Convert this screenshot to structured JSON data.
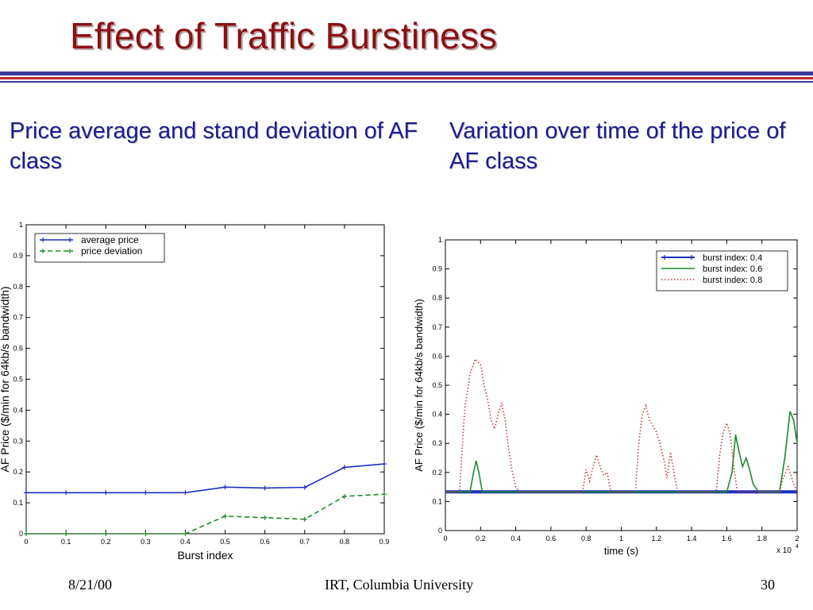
{
  "slide": {
    "title": "Effect of Traffic Burstiness",
    "left_heading": "Price average and stand deviation of AF class",
    "right_heading": "Variation over time of the price of AF class",
    "footer": {
      "date": "8/21/00",
      "organization": "IRT, Columbia University",
      "page": "30"
    },
    "colors": {
      "title": "#8b0f13",
      "heading": "#1b1b8f",
      "rule_blue": "#3c3aa0",
      "rule_red": "#c0262c"
    }
  },
  "chart_data": [
    {
      "type": "line",
      "xlabel": "Burst index",
      "ylabel": "AF Price ($/min for 64kb/s bandwidth)",
      "xlim": [
        0,
        0.9
      ],
      "ylim": [
        0,
        1
      ],
      "xticks": [
        "0",
        "0.1",
        "0.2",
        "0.3",
        "0.4",
        "0.5",
        "0.6",
        "0.7",
        "0.8",
        "0.9"
      ],
      "yticks": [
        "0",
        "0.1",
        "0.2",
        "0.3",
        "0.4",
        "0.5",
        "0.6",
        "0.7",
        "0.8",
        "0.9",
        "1"
      ],
      "legend_position": "top-left",
      "x": [
        0,
        0.1,
        0.2,
        0.3,
        0.4,
        0.5,
        0.6,
        0.7,
        0.8,
        0.9
      ],
      "series": [
        {
          "name": "average price",
          "color": "#1b2fbf",
          "style": "solid",
          "values": [
            0.133,
            0.133,
            0.133,
            0.133,
            0.133,
            0.151,
            0.148,
            0.15,
            0.215,
            0.226
          ]
        },
        {
          "name": "price deviation",
          "color": "#1d8a2a",
          "style": "dashed",
          "values": [
            0.0,
            0.0,
            0.0,
            0.0,
            0.0,
            0.057,
            0.052,
            0.047,
            0.121,
            0.128
          ]
        }
      ]
    },
    {
      "type": "line",
      "xlabel": "time (s)",
      "ylabel": "AF Price ($/min for 64kb/s bandwidth)",
      "x_multiplier": "x 10",
      "x_multiplier_exponent": "4",
      "xlim": [
        0,
        2
      ],
      "ylim": [
        0,
        1
      ],
      "xticks": [
        "0",
        "0.2",
        "0.4",
        "0.6",
        "0.8",
        "1",
        "1.2",
        "1.4",
        "1.6",
        "1.8",
        "2"
      ],
      "yticks": [
        "0",
        "0.1",
        "0.2",
        "0.3",
        "0.4",
        "0.5",
        "0.6",
        "0.7",
        "0.8",
        "0.9",
        "1"
      ],
      "legend_position": "top-right",
      "series": [
        {
          "name": "burst index: 0.4",
          "color": "#1b2fbf",
          "style": "solid-marker",
          "x": [
            0,
            2
          ],
          "values": [
            0.133,
            0.133
          ]
        },
        {
          "name": "burst index: 0.6",
          "color": "#1d8a2a",
          "style": "solid",
          "x": [
            0,
            0.14,
            0.16,
            0.175,
            0.19,
            0.21,
            0.23,
            1.6,
            1.63,
            1.65,
            1.67,
            1.69,
            1.71,
            1.73,
            1.75,
            1.78,
            1.9,
            1.93,
            1.96,
            1.98,
            2.0
          ],
          "values": [
            0.133,
            0.133,
            0.2,
            0.24,
            0.2,
            0.133,
            0.133,
            0.133,
            0.2,
            0.33,
            0.27,
            0.22,
            0.25,
            0.21,
            0.16,
            0.133,
            0.133,
            0.25,
            0.41,
            0.38,
            0.3
          ]
        },
        {
          "name": "burst index: 0.8",
          "color": "#c43c3c",
          "style": "dotted",
          "x": [
            0,
            0.08,
            0.11,
            0.14,
            0.17,
            0.2,
            0.22,
            0.24,
            0.26,
            0.28,
            0.3,
            0.32,
            0.34,
            0.36,
            0.38,
            0.4,
            0.42,
            0.44,
            0.78,
            0.8,
            0.82,
            0.84,
            0.86,
            0.88,
            0.9,
            0.92,
            0.94,
            1.08,
            1.1,
            1.12,
            1.14,
            1.16,
            1.18,
            1.2,
            1.22,
            1.24,
            1.26,
            1.28,
            1.3,
            1.32,
            1.34,
            1.36,
            1.54,
            1.56,
            1.58,
            1.6,
            1.62,
            1.64,
            1.66,
            1.9,
            1.92,
            1.95,
            1.98,
            2.0
          ],
          "values": [
            0.133,
            0.133,
            0.42,
            0.54,
            0.59,
            0.57,
            0.5,
            0.45,
            0.38,
            0.35,
            0.4,
            0.44,
            0.38,
            0.28,
            0.2,
            0.15,
            0.133,
            0.133,
            0.133,
            0.21,
            0.17,
            0.22,
            0.26,
            0.22,
            0.19,
            0.2,
            0.133,
            0.133,
            0.3,
            0.4,
            0.43,
            0.38,
            0.36,
            0.34,
            0.3,
            0.25,
            0.18,
            0.27,
            0.2,
            0.133,
            0.133,
            0.133,
            0.133,
            0.26,
            0.34,
            0.37,
            0.33,
            0.22,
            0.133,
            0.133,
            0.18,
            0.22,
            0.16,
            0.133
          ]
        }
      ]
    }
  ]
}
